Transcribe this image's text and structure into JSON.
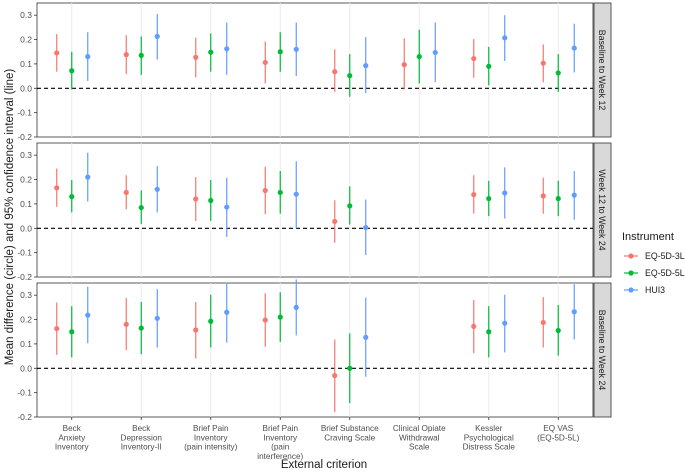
{
  "chart_data": {
    "type": "errorbar",
    "ylabel": "Mean difference (circle) and 95% confidence interval (line)",
    "xlabel": "External criterion",
    "ylim": [
      -0.2,
      0.35
    ],
    "yticks": [
      -0.2,
      -0.1,
      0.0,
      0.1,
      0.2,
      0.3
    ],
    "ytick_labels": [
      "-0.2",
      "-0.1",
      "0.0",
      "0.1",
      "0.2",
      "0.3"
    ],
    "reference_line": 0,
    "categories": [
      [
        "Beck",
        "Anxiety",
        "Inventory"
      ],
      [
        "Beck",
        "Depression",
        "Inventory-II"
      ],
      [
        "Brief Pain",
        "Inventory",
        "(pain intensity)"
      ],
      [
        "Brief Pain",
        "Inventory",
        "(pain",
        "interference)"
      ],
      [
        "Brief Substance",
        "Craving Scale"
      ],
      [
        "Clinical Opiate",
        "Withdrawal",
        "Scale"
      ],
      [
        "Kessler",
        "Psychological",
        "Distress Scale"
      ],
      [
        "EQ VAS",
        "(EQ-5D-5L)"
      ]
    ],
    "legend": {
      "title": "Instrument",
      "entries": [
        "EQ-5D-3L",
        "EQ-5D-5L",
        "HUI3"
      ],
      "position": "right"
    },
    "series_colors": {
      "EQ-5D-3L": "#F8766D",
      "EQ-5D-5L": "#00BA38",
      "HUI3": "#619CFF"
    },
    "panels": [
      {
        "label": "Baseline to Week 12",
        "series": [
          {
            "name": "EQ-5D-3L",
            "mean": [
              0.145,
              0.138,
              0.127,
              0.106,
              0.068,
              0.097,
              0.122,
              0.103
            ],
            "lower": [
              0.068,
              0.058,
              0.045,
              0.02,
              -0.015,
              -0.005,
              0.043,
              0.025
            ],
            "upper": [
              0.222,
              0.218,
              0.208,
              0.192,
              0.16,
              0.205,
              0.202,
              0.18
            ]
          },
          {
            "name": "EQ-5D-5L",
            "mean": [
              0.072,
              0.135,
              0.148,
              0.15,
              0.052,
              0.13,
              0.09,
              0.063
            ],
            "lower": [
              -0.005,
              0.055,
              0.068,
              0.068,
              -0.035,
              0.02,
              0.012,
              -0.015
            ],
            "upper": [
              0.15,
              0.213,
              0.225,
              0.23,
              0.14,
              0.24,
              0.17,
              0.14
            ]
          },
          {
            "name": "HUI3",
            "mean": [
              0.13,
              0.213,
              0.162,
              0.16,
              0.093,
              0.147,
              0.207,
              0.165
            ],
            "lower": [
              0.03,
              0.118,
              0.055,
              0.05,
              -0.02,
              0.025,
              0.112,
              0.065
            ],
            "upper": [
              0.23,
              0.305,
              0.27,
              0.27,
              0.21,
              0.27,
              0.3,
              0.265
            ]
          }
        ]
      },
      {
        "label": "Week 12 to Week 24",
        "series": [
          {
            "name": "EQ-5D-3L",
            "mean": [
              0.166,
              0.147,
              0.12,
              0.155,
              0.028,
              null,
              0.138,
              0.133
            ],
            "lower": [
              0.088,
              0.078,
              0.03,
              0.058,
              -0.06,
              null,
              0.06,
              0.06
            ],
            "upper": [
              0.245,
              0.218,
              0.21,
              0.253,
              0.115,
              null,
              0.218,
              0.208
            ]
          },
          {
            "name": "EQ-5D-5L",
            "mean": [
              0.13,
              0.085,
              0.114,
              0.147,
              0.092,
              null,
              0.122,
              0.122
            ],
            "lower": [
              0.065,
              0.018,
              0.03,
              0.06,
              0.015,
              null,
              0.05,
              0.05
            ],
            "upper": [
              0.198,
              0.155,
              0.198,
              0.235,
              0.172,
              null,
              0.195,
              0.195
            ]
          },
          {
            "name": "HUI3",
            "mean": [
              0.21,
              0.16,
              0.087,
              0.14,
              0.003,
              null,
              0.145,
              0.136
            ],
            "lower": [
              0.11,
              0.065,
              -0.035,
              0.0,
              -0.11,
              null,
              0.04,
              0.035
            ],
            "upper": [
              0.31,
              0.255,
              0.207,
              0.275,
              0.118,
              null,
              0.25,
              0.235
            ]
          }
        ]
      },
      {
        "label": "Baseline to Week 24",
        "series": [
          {
            "name": "EQ-5D-3L",
            "mean": [
              0.163,
              0.18,
              0.157,
              0.198,
              -0.03,
              null,
              0.172,
              0.188
            ],
            "lower": [
              0.055,
              0.075,
              0.04,
              0.088,
              -0.18,
              null,
              0.062,
              0.085
            ],
            "upper": [
              0.27,
              0.288,
              0.272,
              0.308,
              0.118,
              null,
              0.28,
              0.292
            ]
          },
          {
            "name": "EQ-5D-5L",
            "mean": [
              0.15,
              0.165,
              0.193,
              0.21,
              0.0,
              null,
              0.15,
              0.155
            ],
            "lower": [
              0.045,
              0.058,
              0.085,
              0.108,
              -0.143,
              null,
              0.045,
              0.052
            ],
            "upper": [
              0.255,
              0.272,
              0.302,
              0.312,
              0.143,
              null,
              0.255,
              0.26
            ]
          },
          {
            "name": "HUI3",
            "mean": [
              0.218,
              0.205,
              0.23,
              0.25,
              0.127,
              null,
              0.185,
              0.232
            ],
            "lower": [
              0.103,
              0.085,
              0.105,
              0.135,
              -0.035,
              null,
              0.065,
              0.118
            ],
            "upper": [
              0.335,
              0.325,
              0.352,
              0.365,
              0.29,
              null,
              0.302,
              0.345
            ]
          }
        ]
      }
    ]
  }
}
